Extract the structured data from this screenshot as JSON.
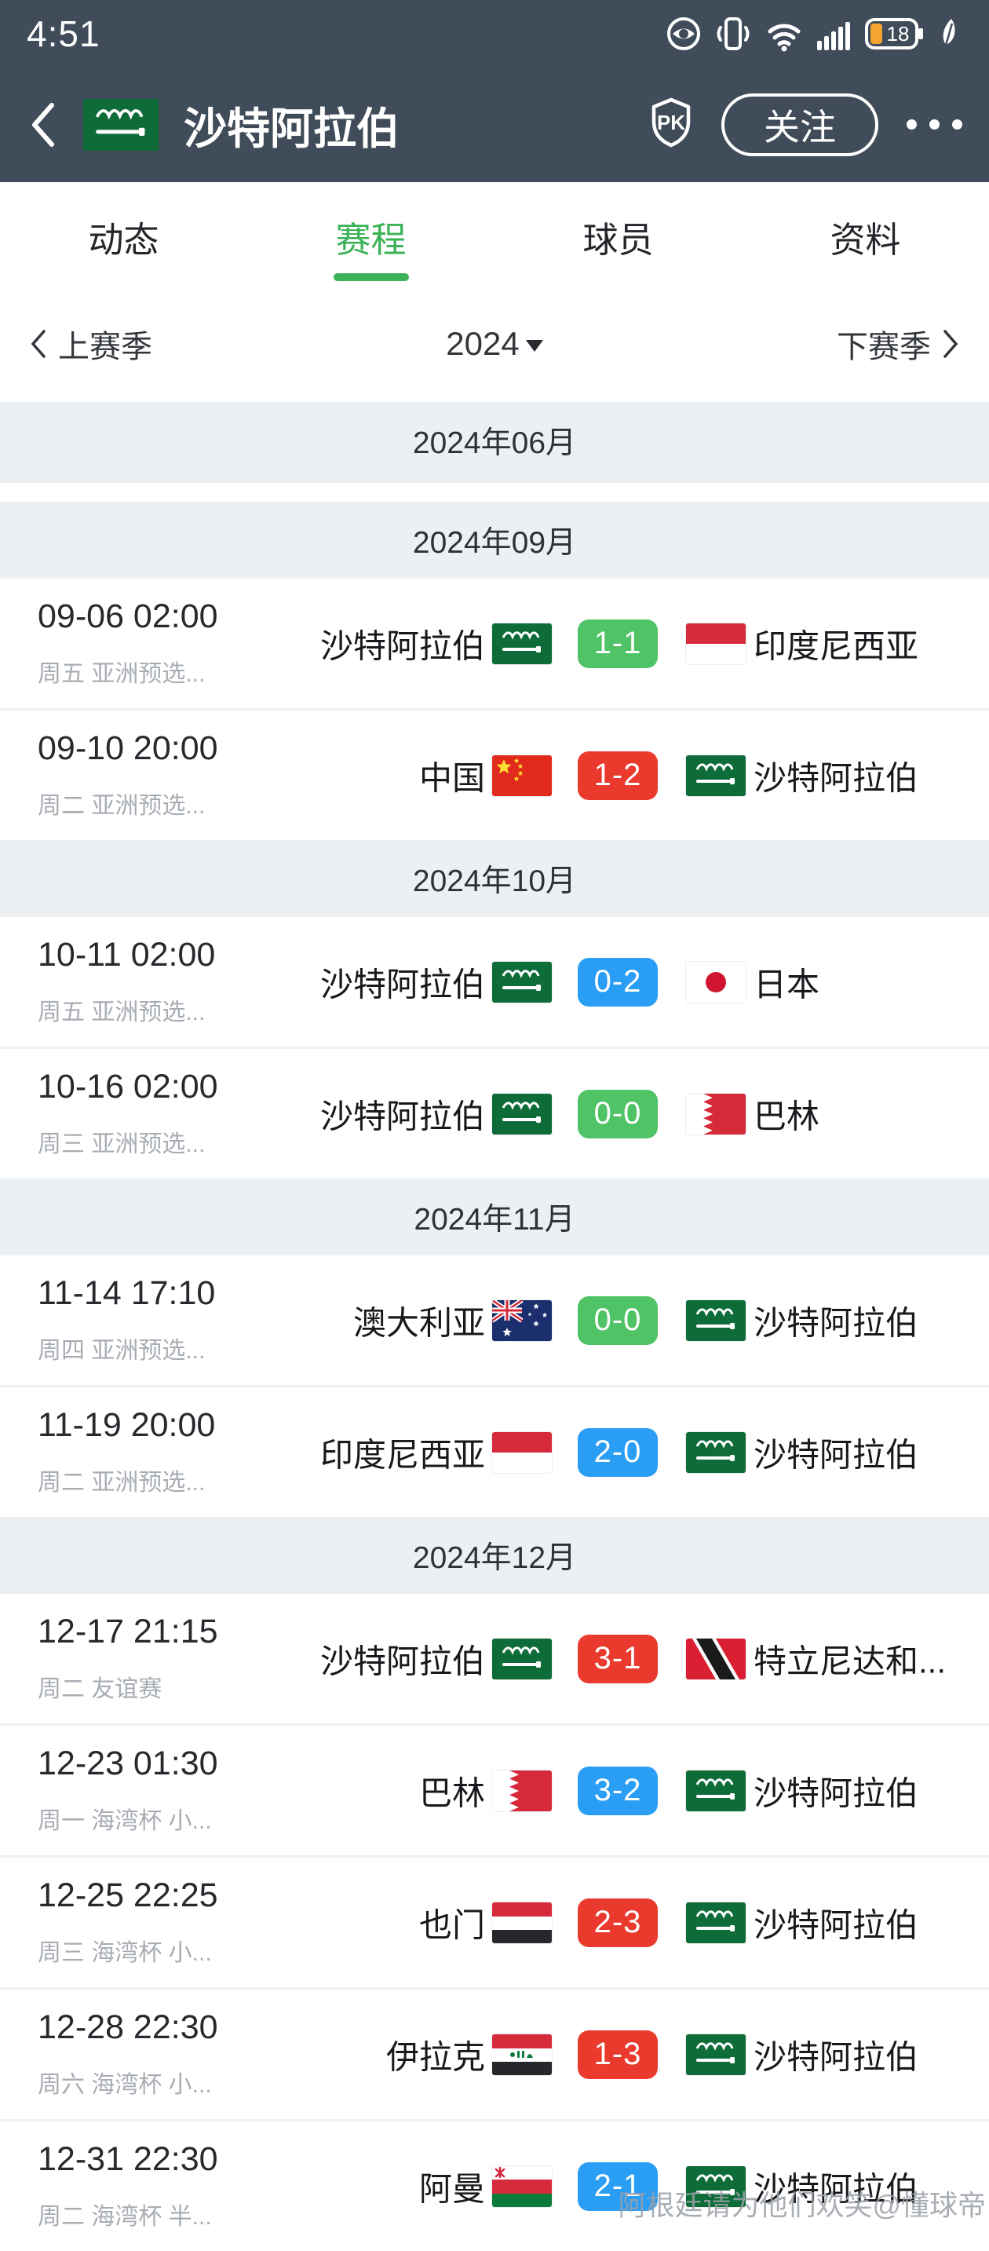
{
  "colors": {
    "top_bar": "#404c59",
    "accent": "#3cb257",
    "win": "#e93a2d",
    "draw": "#4fc366",
    "loss": "#2a9df4",
    "month_band_bg": "#edf0f3",
    "battery_fill": "#f5a431"
  },
  "status_bar": {
    "time": "4:51",
    "battery_level": "18"
  },
  "header": {
    "title": "沙特阿拉伯",
    "team_flag": "sa",
    "pk_label": "PK",
    "follow_label": "关注"
  },
  "tabs": [
    {
      "key": "dongtai",
      "label": "动态",
      "active": false
    },
    {
      "key": "saicheng",
      "label": "赛程",
      "active": true
    },
    {
      "key": "qiuyuan",
      "label": "球员",
      "active": false
    },
    {
      "key": "ziliao",
      "label": "资料",
      "active": false
    }
  ],
  "season_nav": {
    "prev": "上赛季",
    "current": "2024",
    "next": "下赛季"
  },
  "months": [
    {
      "header": "2024年06月",
      "matches": []
    },
    {
      "header": "2024年09月",
      "matches": [
        {
          "date": "09-06 02:00",
          "meta": "周五 亚洲预选...",
          "home": "沙特阿拉伯",
          "home_flag": "sa",
          "score": "1-1",
          "result": "draw",
          "away": "印度尼西亚",
          "away_flag": "id"
        },
        {
          "date": "09-10 20:00",
          "meta": "周二 亚洲预选...",
          "home": "中国",
          "home_flag": "cn",
          "score": "1-2",
          "result": "win",
          "away": "沙特阿拉伯",
          "away_flag": "sa"
        }
      ]
    },
    {
      "header": "2024年10月",
      "matches": [
        {
          "date": "10-11 02:00",
          "meta": "周五 亚洲预选...",
          "home": "沙特阿拉伯",
          "home_flag": "sa",
          "score": "0-2",
          "result": "loss",
          "away": "日本",
          "away_flag": "jp"
        },
        {
          "date": "10-16 02:00",
          "meta": "周三 亚洲预选...",
          "home": "沙特阿拉伯",
          "home_flag": "sa",
          "score": "0-0",
          "result": "draw",
          "away": "巴林",
          "away_flag": "bh"
        }
      ]
    },
    {
      "header": "2024年11月",
      "matches": [
        {
          "date": "11-14 17:10",
          "meta": "周四 亚洲预选...",
          "home": "澳大利亚",
          "home_flag": "au",
          "score": "0-0",
          "result": "draw",
          "away": "沙特阿拉伯",
          "away_flag": "sa"
        },
        {
          "date": "11-19 20:00",
          "meta": "周二 亚洲预选...",
          "home": "印度尼西亚",
          "home_flag": "id",
          "score": "2-0",
          "result": "loss",
          "away": "沙特阿拉伯",
          "away_flag": "sa"
        }
      ]
    },
    {
      "header": "2024年12月",
      "matches": [
        {
          "date": "12-17 21:15",
          "meta": "周二 友谊赛",
          "home": "沙特阿拉伯",
          "home_flag": "sa",
          "score": "3-1",
          "result": "win",
          "away": "特立尼达和...",
          "away_flag": "tt"
        },
        {
          "date": "12-23 01:30",
          "meta": "周一 海湾杯 小...",
          "home": "巴林",
          "home_flag": "bh",
          "score": "3-2",
          "result": "loss",
          "away": "沙特阿拉伯",
          "away_flag": "sa"
        },
        {
          "date": "12-25 22:25",
          "meta": "周三 海湾杯 小...",
          "home": "也门",
          "home_flag": "ye",
          "score": "2-3",
          "result": "win",
          "away": "沙特阿拉伯",
          "away_flag": "sa"
        },
        {
          "date": "12-28 22:30",
          "meta": "周六 海湾杯 小...",
          "home": "伊拉克",
          "home_flag": "iq",
          "score": "1-3",
          "result": "win",
          "away": "沙特阿拉伯",
          "away_flag": "sa"
        },
        {
          "date": "12-31 22:30",
          "meta": "周二 海湾杯 半...",
          "home": "阿曼",
          "home_flag": "om",
          "score": "2-1",
          "result": "loss",
          "away": "沙特阿拉伯",
          "away_flag": "sa"
        }
      ]
    }
  ],
  "watermark": "阿根廷请为他们欢笑@懂球帝"
}
